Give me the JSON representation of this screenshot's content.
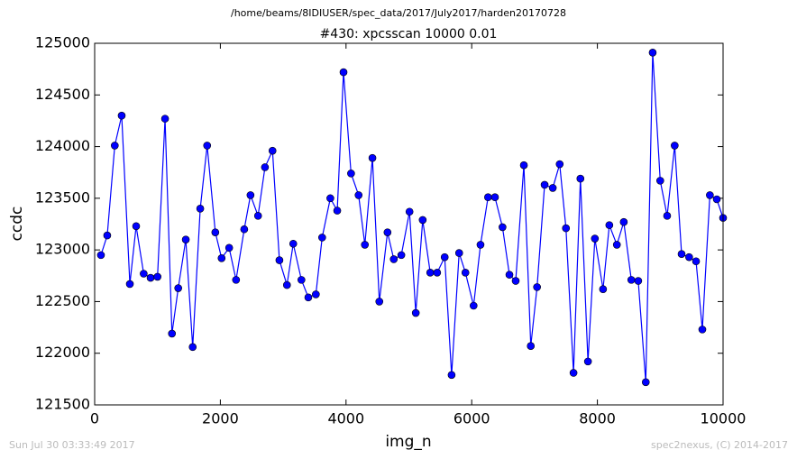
{
  "chart_data": {
    "type": "line",
    "suptitle": "/home/beams/8IDIUSER/spec_data/2017/July2017/harden20170728",
    "title": "#430: xpcsscan 10000 0.01",
    "xlabel": "img_n",
    "ylabel": "ccdc",
    "footer_left": "Sun Jul 30 03:33:49 2017",
    "footer_right": "spec2nexus, (C) 2014-2017",
    "color": "#0000ff",
    "marker_edge": "#000000",
    "x": [
      100,
      200,
      320,
      430,
      560,
      660,
      780,
      890,
      1000,
      1120,
      1230,
      1330,
      1450,
      1560,
      1680,
      1790,
      1920,
      2020,
      2140,
      2250,
      2380,
      2480,
      2600,
      2710,
      2830,
      2940,
      3060,
      3160,
      3290,
      3400,
      3520,
      3620,
      3750,
      3860,
      3960,
      4080,
      4200,
      4300,
      4420,
      4530,
      4660,
      4760,
      4880,
      5010,
      5110,
      5220,
      5340,
      5450,
      5570,
      5680,
      5800,
      5900,
      6030,
      6140,
      6260,
      6370,
      6490,
      6600,
      6700,
      6830,
      6940,
      7040,
      7160,
      7290,
      7400,
      7500,
      7620,
      7730,
      7850,
      7960,
      8090,
      8190,
      8310,
      8420,
      8540,
      8650,
      8770,
      8880,
      9000,
      9110,
      9230,
      9340,
      9460,
      9570,
      9670,
      9790,
      9900,
      10000
    ],
    "values": [
      122950,
      123140,
      124010,
      124300,
      122670,
      123230,
      122770,
      122730,
      122740,
      124270,
      122190,
      122630,
      123100,
      122060,
      123400,
      124010,
      123170,
      122920,
      123020,
      122710,
      123200,
      123530,
      123330,
      123800,
      123960,
      122900,
      122660,
      123060,
      122710,
      122540,
      122570,
      123120,
      123500,
      123380,
      124720,
      123740,
      123530,
      123050,
      123890,
      122500,
      123170,
      122910,
      122950,
      123370,
      122390,
      123290,
      122780,
      122780,
      122930,
      121790,
      122970,
      122780,
      122460,
      123050,
      123510,
      123510,
      123220,
      122760,
      122700,
      123820,
      122070,
      122640,
      123630,
      123600,
      123830,
      123210,
      121810,
      123690,
      121920,
      123110,
      122620,
      123240,
      123050,
      123270,
      122710,
      122700,
      121720,
      124910,
      123670,
      123330,
      124010,
      122960,
      122930,
      122890,
      122230,
      123530,
      123490,
      123310
    ],
    "xlim": [
      0,
      10000
    ],
    "xticks": [
      0,
      2000,
      4000,
      6000,
      8000,
      10000
    ],
    "ylim": [
      121500,
      125000
    ],
    "yticks": [
      121500,
      122000,
      122500,
      123000,
      123500,
      124000,
      124500,
      125000
    ],
    "grid": false
  }
}
